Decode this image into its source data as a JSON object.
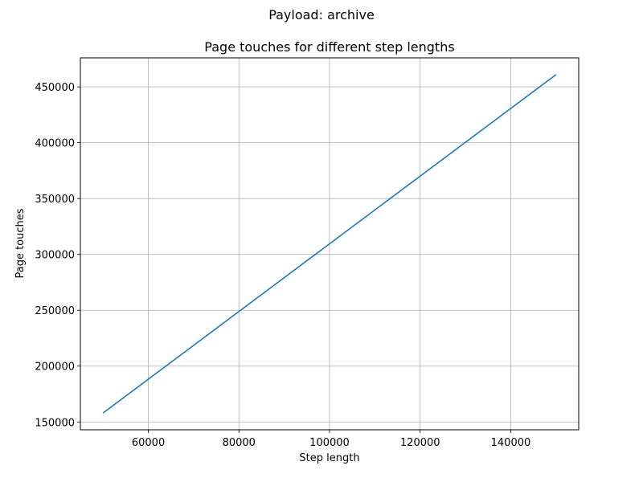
{
  "figure": {
    "suptitle": "Payload: archive"
  },
  "chart_data": {
    "type": "line",
    "title": "Page touches for different step lengths",
    "xlabel": "Step length",
    "ylabel": "Page touches",
    "xlim": [
      45000,
      155000
    ],
    "ylim": [
      143000,
      476000
    ],
    "xticks": [
      60000,
      80000,
      100000,
      120000,
      140000
    ],
    "yticks": [
      150000,
      200000,
      250000,
      300000,
      350000,
      400000,
      450000
    ],
    "grid": true,
    "series": [
      {
        "color": "#1f77b4",
        "x": [
          50000,
          60000,
          70000,
          80000,
          90000,
          100000,
          110000,
          120000,
          130000,
          140000,
          150000
        ],
        "y": [
          158000,
          188300,
          218600,
          248900,
          279200,
          309500,
          339800,
          370100,
          400400,
          430700,
          461000
        ]
      }
    ]
  }
}
